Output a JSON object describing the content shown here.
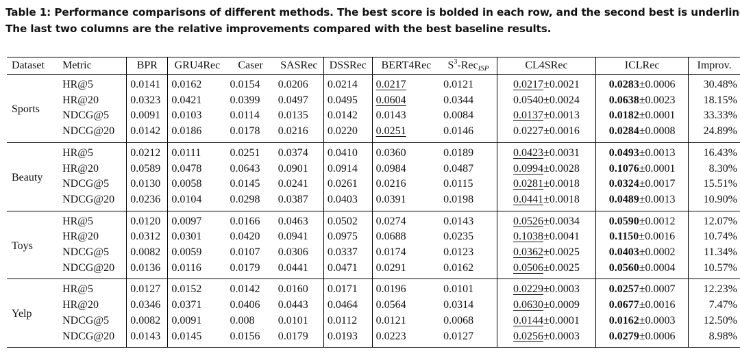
{
  "caption": {
    "line1": "Table 1: Performance comparisons of different methods. The best score is bolded in each row, and the second best is underlined.",
    "line2": "The last two columns are the relative improvements compared with the best baseline results."
  },
  "headers": {
    "dataset": "Dataset",
    "metric": "Metric",
    "bpr": "BPR",
    "gru4rec": "GRU4Rec",
    "caser": "Caser",
    "sasrec": "SASRec",
    "dssrec": "DSSRec",
    "bert4rec": "BERT4Rec",
    "s3rec_prefix": "S",
    "s3rec_sup": "3",
    "s3rec_mid": "-Rec",
    "s3rec_sub": "ISP",
    "cl4srec": "CL4SRec",
    "iclrec": "ICLRec",
    "improv": "Improv."
  },
  "groups": [
    {
      "dataset": "Sports",
      "rows": [
        {
          "metric": "HR@5",
          "bpr": "0.0141",
          "gru4rec": "0.0162",
          "caser": "0.0154",
          "sasrec": "0.0206",
          "dssrec": "0.0214",
          "bert4rec": "0.0217",
          "s3rec": "0.0121",
          "cl4srec_mean": "0.0217",
          "cl4srec_std": "±0.0021",
          "iclrec_mean": "0.0283",
          "iclrec_std": "±0.0006",
          "improv": "30.48%"
        },
        {
          "metric": "HR@20",
          "bpr": "0.0323",
          "gru4rec": "0.0421",
          "caser": "0.0399",
          "sasrec": "0.0497",
          "dssrec": "0.0495",
          "bert4rec": "0.0604",
          "s3rec": "0.0344",
          "cl4srec_mean": "0.0540",
          "cl4srec_std": "±0.0024",
          "iclrec_mean": "0.0638",
          "iclrec_std": "±0.0023",
          "improv": "18.15%"
        },
        {
          "metric": "NDCG@5",
          "bpr": "0.0091",
          "gru4rec": "0.0103",
          "caser": "0.0114",
          "sasrec": "0.0135",
          "dssrec": "0.0142",
          "bert4rec": "0.0143",
          "s3rec": "0.0084",
          "cl4srec_mean": "0.0137",
          "cl4srec_std": "±0.0013",
          "iclrec_mean": "0.0182",
          "iclrec_std": "±0.0001",
          "improv": "33.33%"
        },
        {
          "metric": "NDCG@20",
          "bpr": "0.0142",
          "gru4rec": "0.0186",
          "caser": "0.0178",
          "sasrec": "0.0216",
          "dssrec": "0.0220",
          "bert4rec": "0.0251",
          "s3rec": "0.0146",
          "cl4srec_mean": "0.0227",
          "cl4srec_std": "±0.0016",
          "iclrec_mean": "0.0284",
          "iclrec_std": "±0.0008",
          "improv": "24.89%"
        }
      ]
    },
    {
      "dataset": "Beauty",
      "rows": [
        {
          "metric": "HR@5",
          "bpr": "0.0212",
          "gru4rec": "0.0111",
          "caser": "0.0251",
          "sasrec": "0.0374",
          "dssrec": "0.0410",
          "bert4rec": "0.0360",
          "s3rec": "0.0189",
          "cl4srec_mean": "0.0423",
          "cl4srec_std": "±0.0031",
          "iclrec_mean": "0.0493",
          "iclrec_std": "±0.0013",
          "improv": "16.43%"
        },
        {
          "metric": "HR@20",
          "bpr": "0.0589",
          "gru4rec": "0.0478",
          "caser": "0.0643",
          "sasrec": "0.0901",
          "dssrec": "0.0914",
          "bert4rec": "0.0984",
          "s3rec": "0.0487",
          "cl4srec_mean": "0.0994",
          "cl4srec_std": "±0.0028",
          "iclrec_mean": "0.1076",
          "iclrec_std": "±0.0001",
          "improv": "8.30%"
        },
        {
          "metric": "NDCG@5",
          "bpr": "0.0130",
          "gru4rec": "0.0058",
          "caser": "0.0145",
          "sasrec": "0.0241",
          "dssrec": "0.0261",
          "bert4rec": "0.0216",
          "s3rec": "0.0115",
          "cl4srec_mean": "0.0281",
          "cl4srec_std": "±0.0018",
          "iclrec_mean": "0.0324",
          "iclrec_std": "±0.0017",
          "improv": "15.51%"
        },
        {
          "metric": "NDCG@20",
          "bpr": "0.0236",
          "gru4rec": "0.0104",
          "caser": "0.0298",
          "sasrec": "0.0387",
          "dssrec": "0.0403",
          "bert4rec": "0.0391",
          "s3rec": "0.0198",
          "cl4srec_mean": "0.0441",
          "cl4srec_std": "±0.0018",
          "iclrec_mean": "0.0489",
          "iclrec_std": "±0.0013",
          "improv": "10.90%"
        }
      ]
    },
    {
      "dataset": "Toys",
      "rows": [
        {
          "metric": "HR@5",
          "bpr": "0.0120",
          "gru4rec": "0.0097",
          "caser": "0.0166",
          "sasrec": "0.0463",
          "dssrec": "0.0502",
          "bert4rec": "0.0274",
          "s3rec": "0.0143",
          "cl4srec_mean": "0.0526",
          "cl4srec_std": "±0.0034",
          "iclrec_mean": "0.0590",
          "iclrec_std": "±0.0012",
          "improv": "12.07%"
        },
        {
          "metric": "HR@20",
          "bpr": "0.0312",
          "gru4rec": "0.0301",
          "caser": "0.0420",
          "sasrec": "0.0941",
          "dssrec": "0.0975",
          "bert4rec": "0.0688",
          "s3rec": "0.0235",
          "cl4srec_mean": "0.1038",
          "cl4srec_std": "±0.0041",
          "iclrec_mean": "0.1150",
          "iclrec_std": "±0.0016",
          "improv": "10.74%"
        },
        {
          "metric": "NDCG@5",
          "bpr": "0.0082",
          "gru4rec": "0.0059",
          "caser": "0.0107",
          "sasrec": "0.0306",
          "dssrec": "0.0337",
          "bert4rec": "0.0174",
          "s3rec": "0.0123",
          "cl4srec_mean": "0.0362",
          "cl4srec_std": "±0.0025",
          "iclrec_mean": "0.0403",
          "iclrec_std": "±0.0002",
          "improv": "11.34%"
        },
        {
          "metric": "NDCG@20",
          "bpr": "0.0136",
          "gru4rec": "0.0116",
          "caser": "0.0179",
          "sasrec": "0.0441",
          "dssrec": "0.0471",
          "bert4rec": "0.0291",
          "s3rec": "0.0162",
          "cl4srec_mean": "0.0506",
          "cl4srec_std": "±0.0025",
          "iclrec_mean": "0.0560",
          "iclrec_std": "±0.0004",
          "improv": "10.57%"
        }
      ]
    },
    {
      "dataset": "Yelp",
      "rows": [
        {
          "metric": "HR@5",
          "bpr": "0.0127",
          "gru4rec": "0.0152",
          "caser": "0.0142",
          "sasrec": "0.0160",
          "dssrec": "0.0171",
          "bert4rec": "0.0196",
          "s3rec": "0.0101",
          "cl4srec_mean": "0.0229",
          "cl4srec_std": "±0.0003",
          "iclrec_mean": "0.0257",
          "iclrec_std": "±0.0007",
          "improv": "12.23%"
        },
        {
          "metric": "HR@20",
          "bpr": "0.0346",
          "gru4rec": "0.0371",
          "caser": "0.0406",
          "sasrec": "0.0443",
          "dssrec": "0.0464",
          "bert4rec": "0.0564",
          "s3rec": "0.0314",
          "cl4srec_mean": "0.0630",
          "cl4srec_std": "±0.0009",
          "iclrec_mean": "0.0677",
          "iclrec_std": "±0.0016",
          "improv": "7.47%"
        },
        {
          "metric": "NDCG@5",
          "bpr": "0.0082",
          "gru4rec": "0.0091",
          "caser": "0.008",
          "sasrec": "0.0101",
          "dssrec": "0.0112",
          "bert4rec": "0.0121",
          "s3rec": "0.0068",
          "cl4srec_mean": "0.0144",
          "cl4srec_std": "±0.0001",
          "iclrec_mean": "0.0162",
          "iclrec_std": "±0.0003",
          "improv": "12.50%"
        },
        {
          "metric": "NDCG@20",
          "bpr": "0.0143",
          "gru4rec": "0.0145",
          "caser": "0.0156",
          "sasrec": "0.0179",
          "dssrec": "0.0193",
          "bert4rec": "0.0223",
          "s3rec": "0.0127",
          "cl4srec_mean": "0.0256",
          "cl4srec_std": "±0.0003",
          "iclrec_mean": "0.0279",
          "iclrec_std": "±0.0006",
          "improv": "8.98%"
        }
      ]
    }
  ]
}
